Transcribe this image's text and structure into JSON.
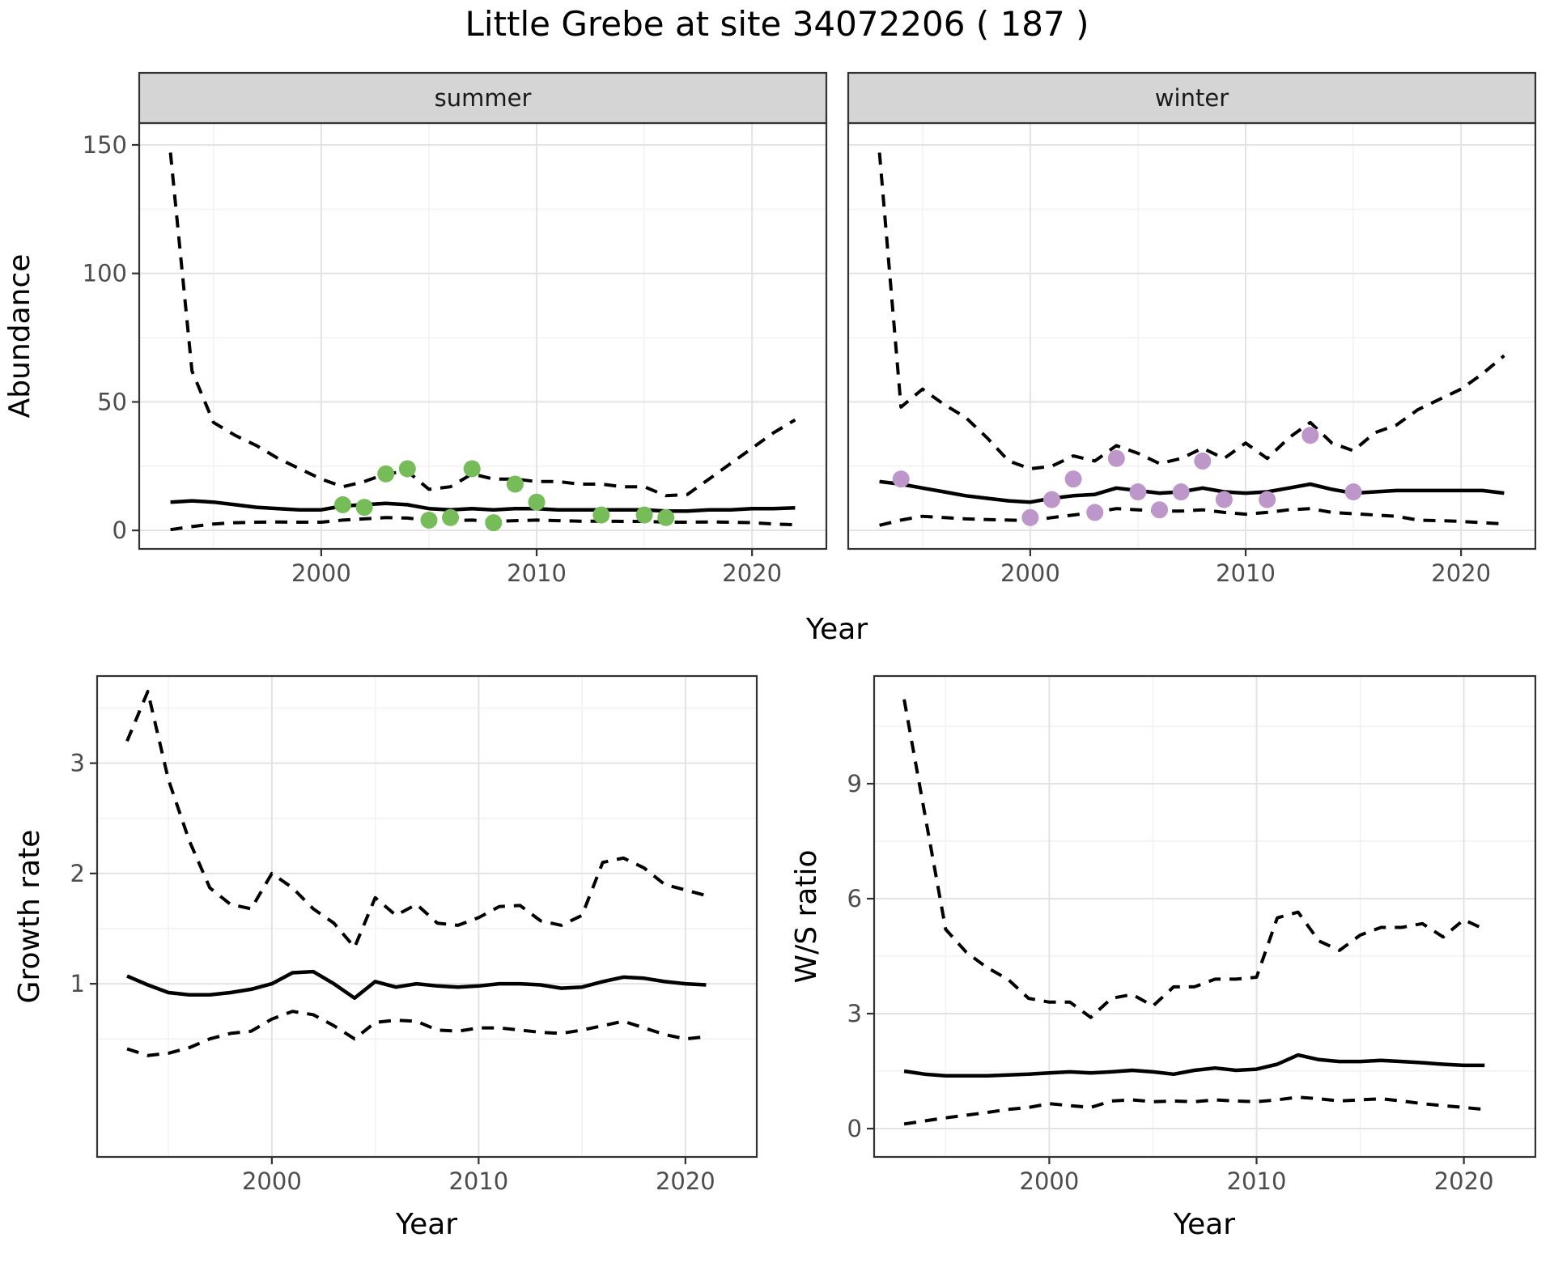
{
  "title": "Little Grebe at site 34072206 ( 187 )",
  "colors": {
    "summer_point": "#76bc58",
    "winter_point": "#bd97c9",
    "line": "#000000",
    "strip_bg": "#d5d5d5",
    "panel_bg": "#ffffff",
    "panel_border": "#333333",
    "grid_major": "#e3e3e3",
    "grid_minor": "#f1f1f1",
    "tick_label": "#4d4d4d",
    "axis_title": "#000000",
    "strip_text": "#1a1a1a"
  },
  "chart_data": [
    {
      "id": "abundance-summer",
      "type": "line",
      "strip_label": "summer",
      "xlabel": "Year",
      "ylabel": "Abundance",
      "xlim": [
        1991.55,
        2023.45
      ],
      "ylim": [
        -7.2,
        158.5
      ],
      "x_ticks": [
        2000,
        2010,
        2020
      ],
      "y_ticks": [
        0,
        50,
        100,
        150
      ],
      "show_y_tick_labels": true,
      "series": [
        {
          "name": "upper-95ci",
          "style": "dashed",
          "x_start": 1993,
          "x_step": 1,
          "y": [
            147,
            62,
            42,
            37,
            33,
            28,
            24,
            20,
            17,
            19,
            22,
            23,
            16,
            17,
            22,
            20,
            20,
            19,
            19,
            18,
            18,
            17,
            17,
            13.5,
            14,
            20,
            26,
            32,
            38,
            43
          ]
        },
        {
          "name": "mean",
          "style": "solid",
          "x_start": 1993,
          "x_step": 1,
          "y": [
            11,
            11.5,
            11,
            10,
            9,
            8.5,
            8,
            8,
            9.5,
            10,
            10.5,
            10,
            8.5,
            8,
            8.5,
            8,
            8.5,
            8.5,
            8,
            8,
            8,
            8,
            8,
            7.5,
            7.5,
            8,
            8,
            8.5,
            8.5,
            8.8
          ]
        },
        {
          "name": "lower-95ci",
          "style": "dashed",
          "x_start": 1993,
          "x_step": 1,
          "y": [
            0.3,
            1.5,
            2.5,
            3,
            3.2,
            3.3,
            3.2,
            3.2,
            4,
            4.5,
            5,
            4.8,
            4,
            3.8,
            4,
            3.5,
            3.8,
            4,
            3.8,
            3.6,
            3.6,
            3.5,
            3.5,
            3.2,
            3.2,
            3.3,
            3.2,
            3,
            2.5,
            2.2
          ]
        },
        {
          "name": "observed-counts",
          "style": "points",
          "color": "#76bc58",
          "x": [
            2001,
            2002,
            2003,
            2004,
            2005,
            2006,
            2007,
            2008,
            2009,
            2010,
            2013,
            2015,
            2016
          ],
          "y": [
            10,
            9,
            22,
            24,
            4,
            5,
            24,
            3,
            18,
            11,
            6,
            6,
            5
          ]
        }
      ]
    },
    {
      "id": "abundance-winter",
      "type": "line",
      "strip_label": "winter",
      "xlabel": "Year",
      "ylabel": "Abundance",
      "xlim": [
        1991.55,
        2023.45
      ],
      "ylim": [
        -7.2,
        158.5
      ],
      "x_ticks": [
        2000,
        2010,
        2020
      ],
      "y_ticks": [
        0,
        50,
        100,
        150
      ],
      "show_y_tick_labels": false,
      "series": [
        {
          "name": "upper-95ci",
          "style": "dashed",
          "x_start": 1993,
          "x_step": 1,
          "y": [
            147,
            48,
            55,
            49,
            44,
            36,
            27,
            24,
            25,
            29,
            27,
            33,
            30,
            26,
            28,
            32,
            28,
            34,
            28,
            36,
            42,
            34,
            31,
            38,
            41,
            47,
            51,
            55,
            61,
            68
          ]
        },
        {
          "name": "mean",
          "style": "solid",
          "x_start": 1993,
          "x_step": 1,
          "y": [
            19,
            18,
            16.5,
            15,
            13.5,
            12.5,
            11.5,
            11,
            12.5,
            13.5,
            14,
            16.5,
            15.5,
            14.5,
            15,
            16.5,
            15,
            14.5,
            15,
            16.5,
            18,
            16,
            14.5,
            15,
            15.5,
            15.5,
            15.5,
            15.5,
            15.5,
            14.5
          ]
        },
        {
          "name": "lower-95ci",
          "style": "dashed",
          "x_start": 1993,
          "x_step": 1,
          "y": [
            2,
            4,
            5.5,
            5,
            4.5,
            4.2,
            4,
            3.8,
            5,
            6,
            7,
            8.5,
            8,
            7.5,
            7.5,
            8,
            7,
            6.3,
            7,
            8,
            8.5,
            7,
            6.5,
            6,
            5.5,
            4,
            3.8,
            3.5,
            3,
            2.5
          ]
        },
        {
          "name": "observed-counts",
          "style": "points",
          "color": "#bd97c9",
          "x": [
            1994,
            2000,
            2001,
            2002,
            2003,
            2004,
            2005,
            2006,
            2007,
            2008,
            2009,
            2011,
            2013,
            2015
          ],
          "y": [
            20,
            5,
            12,
            20,
            7,
            28,
            15,
            8,
            15,
            27,
            12,
            12,
            37,
            15
          ]
        }
      ]
    },
    {
      "id": "growth-rate",
      "type": "line",
      "strip_label": null,
      "xlabel": "Year",
      "ylabel": "Growth rate",
      "xlim": [
        1991.55,
        2023.45
      ],
      "ylim": [
        -0.57,
        3.79
      ],
      "x_ticks": [
        2000,
        2010,
        2020
      ],
      "y_ticks": [
        1,
        2,
        3
      ],
      "show_y_tick_labels": true,
      "series": [
        {
          "name": "upper-95ci",
          "style": "dashed",
          "x_start": 1993,
          "x_step": 1,
          "y": [
            3.2,
            3.65,
            2.85,
            2.3,
            1.87,
            1.72,
            1.68,
            2.0,
            1.87,
            1.68,
            1.55,
            1.33,
            1.78,
            1.62,
            1.72,
            1.55,
            1.53,
            1.6,
            1.7,
            1.71,
            1.57,
            1.53,
            1.62,
            2.1,
            2.14,
            2.05,
            1.9,
            1.85,
            1.8
          ]
        },
        {
          "name": "mean",
          "style": "solid",
          "x_start": 1993,
          "x_step": 1,
          "y": [
            1.07,
            0.99,
            0.92,
            0.9,
            0.9,
            0.92,
            0.95,
            1.0,
            1.1,
            1.11,
            1.0,
            0.87,
            1.02,
            0.97,
            1.0,
            0.98,
            0.97,
            0.98,
            1.0,
            1.0,
            0.99,
            0.96,
            0.97,
            1.02,
            1.06,
            1.05,
            1.02,
            1.0,
            0.99
          ]
        },
        {
          "name": "lower-95ci",
          "style": "dashed",
          "x_start": 1993,
          "x_step": 1,
          "y": [
            0.41,
            0.35,
            0.37,
            0.42,
            0.5,
            0.55,
            0.57,
            0.68,
            0.75,
            0.72,
            0.62,
            0.5,
            0.65,
            0.67,
            0.66,
            0.58,
            0.57,
            0.6,
            0.6,
            0.58,
            0.56,
            0.55,
            0.58,
            0.62,
            0.66,
            0.6,
            0.54,
            0.5,
            0.52
          ]
        }
      ]
    },
    {
      "id": "ws-ratio",
      "type": "line",
      "strip_label": null,
      "xlabel": "Year",
      "ylabel": "W/S ratio",
      "xlim": [
        1991.55,
        2023.45
      ],
      "ylim": [
        -0.74,
        11.81
      ],
      "x_ticks": [
        2000,
        2010,
        2020
      ],
      "y_ticks": [
        0,
        3,
        6,
        9
      ],
      "show_y_tick_labels": true,
      "series": [
        {
          "name": "upper-95ci",
          "style": "dashed",
          "x_start": 1993,
          "x_step": 1,
          "y": [
            11.2,
            8.2,
            5.2,
            4.6,
            4.2,
            3.9,
            3.4,
            3.3,
            3.3,
            2.9,
            3.4,
            3.5,
            3.2,
            3.7,
            3.7,
            3.9,
            3.9,
            3.95,
            5.5,
            5.65,
            4.9,
            4.65,
            5.05,
            5.25,
            5.25,
            5.35,
            5.0,
            5.45,
            5.2
          ]
        },
        {
          "name": "mean",
          "style": "solid",
          "x_start": 1993,
          "x_step": 1,
          "y": [
            1.5,
            1.42,
            1.38,
            1.38,
            1.38,
            1.4,
            1.42,
            1.45,
            1.48,
            1.45,
            1.48,
            1.52,
            1.48,
            1.42,
            1.52,
            1.58,
            1.52,
            1.55,
            1.68,
            1.92,
            1.8,
            1.75,
            1.75,
            1.78,
            1.75,
            1.72,
            1.68,
            1.65,
            1.65
          ]
        },
        {
          "name": "lower-95ci",
          "style": "dashed",
          "x_start": 1993,
          "x_step": 1,
          "y": [
            0.12,
            0.2,
            0.28,
            0.35,
            0.42,
            0.5,
            0.55,
            0.65,
            0.6,
            0.55,
            0.72,
            0.75,
            0.7,
            0.72,
            0.7,
            0.75,
            0.72,
            0.7,
            0.75,
            0.82,
            0.78,
            0.72,
            0.75,
            0.78,
            0.72,
            0.65,
            0.6,
            0.55,
            0.5
          ]
        }
      ]
    }
  ]
}
